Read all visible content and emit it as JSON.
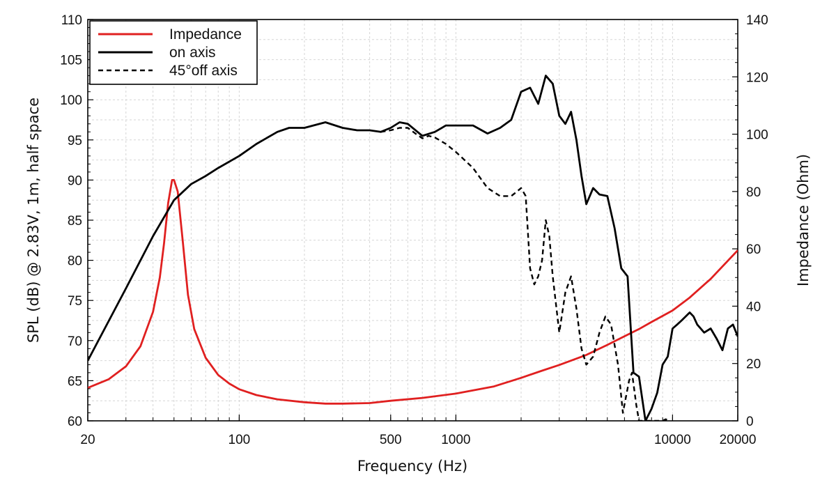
{
  "chart_data": {
    "type": "line",
    "xlabel": "Frequency (Hz)",
    "ylabel": "SPL (dB) @ 2.83V, 1m, half space",
    "y2label": "Impedance (Ohm)",
    "x_scale": "log",
    "xlim": [
      20,
      20000
    ],
    "ylim": [
      60,
      110
    ],
    "y2lim": [
      0,
      140
    ],
    "grid": true,
    "legend_position": "top-left",
    "x_tick_labels": [
      "20",
      "100",
      "500",
      "1000",
      "10000",
      "20000"
    ],
    "x_tick_values": [
      20,
      100,
      500,
      1000,
      10000,
      20000
    ],
    "y_tick_values": [
      60,
      65,
      70,
      75,
      80,
      85,
      90,
      95,
      100,
      105,
      110
    ],
    "y2_tick_values": [
      0,
      20,
      40,
      60,
      80,
      100,
      120,
      140
    ],
    "legend": [
      {
        "label": "Impedance",
        "style": "solid",
        "color": "#e02020"
      },
      {
        "label": "on axis",
        "style": "solid",
        "color": "#000000"
      },
      {
        "label": "45°off axis",
        "style": "dashed",
        "color": "#000000"
      }
    ],
    "series": [
      {
        "name": "Impedance",
        "axis": "y2",
        "color": "#e02020",
        "style": "solid",
        "x": [
          20,
          25,
          30,
          35,
          40,
          43,
          45,
          47,
          49,
          50,
          52,
          55,
          58,
          62,
          70,
          80,
          90,
          100,
          120,
          150,
          200,
          250,
          300,
          400,
          500,
          700,
          1000,
          1500,
          2000,
          2500,
          3000,
          4000,
          5000,
          6000,
          7000,
          8000,
          10000,
          12000,
          15000,
          20000
        ],
        "y": [
          11.5,
          14.5,
          19,
          26,
          38,
          50,
          62,
          76,
          84,
          84,
          80,
          62,
          44,
          32,
          22,
          16,
          13,
          11,
          9,
          7.5,
          6.5,
          6,
          6,
          6.2,
          7,
          8,
          9.5,
          12,
          15,
          17.5,
          19.5,
          23,
          26.5,
          29.5,
          32,
          34.5,
          38.5,
          43,
          49.5,
          59.5
        ]
      },
      {
        "name": "on axis",
        "axis": "y",
        "color": "#000000",
        "style": "solid",
        "x": [
          20,
          30,
          40,
          50,
          60,
          70,
          80,
          100,
          120,
          150,
          170,
          200,
          250,
          300,
          350,
          400,
          450,
          500,
          550,
          600,
          700,
          800,
          900,
          1000,
          1200,
          1400,
          1600,
          1800,
          2000,
          2200,
          2400,
          2600,
          2800,
          3000,
          3200,
          3400,
          3600,
          3800,
          4000,
          4300,
          4600,
          5000,
          5400,
          5800,
          6200,
          6600,
          7000,
          7500,
          8000,
          8500,
          9000,
          9500,
          10000,
          10500,
          11000,
          12000,
          12500,
          13000,
          14000,
          15000,
          16000,
          17000,
          18000,
          19000,
          20000
        ],
        "y": [
          67.5,
          76.5,
          83,
          87.5,
          89.5,
          90.5,
          91.5,
          93,
          94.5,
          96,
          96.5,
          96.5,
          97.2,
          96.5,
          96.2,
          96.2,
          96,
          96.5,
          97.2,
          97,
          95.5,
          96,
          96.8,
          96.8,
          96.8,
          95.8,
          96.5,
          97.5,
          101,
          101.5,
          99.5,
          103,
          102,
          98,
          97,
          98.5,
          95,
          90.5,
          87,
          89,
          88.2,
          88,
          84,
          79,
          78,
          66,
          65.5,
          60,
          61.5,
          63.5,
          67,
          68,
          71.5,
          72,
          72.5,
          73.5,
          73,
          72,
          71,
          71.5,
          70.2,
          68.8,
          71.5,
          72,
          70.5
        ]
      },
      {
        "name": "45°off axis",
        "axis": "y",
        "color": "#000000",
        "style": "dashed",
        "x": [
          450,
          500,
          550,
          600,
          650,
          700,
          750,
          800,
          900,
          1000,
          1200,
          1400,
          1600,
          1800,
          1900,
          2000,
          2100,
          2200,
          2300,
          2400,
          2500,
          2600,
          2700,
          2800,
          3000,
          3200,
          3400,
          3600,
          3800,
          4000,
          4300,
          4600,
          4900,
          5200,
          5600,
          5900,
          6300,
          6500,
          6800,
          7000,
          7300,
          8000,
          9000,
          9300,
          9600
        ],
        "y": [
          96,
          96.2,
          96.5,
          96.5,
          95.8,
          95.2,
          95.5,
          95.3,
          94.5,
          93.5,
          91.5,
          89,
          88,
          88,
          88.5,
          89,
          88,
          79,
          77,
          78,
          80,
          85,
          83,
          78,
          71,
          76,
          78,
          74,
          69,
          67,
          68,
          71,
          73,
          72,
          67,
          61,
          65,
          66,
          62,
          60,
          60,
          60,
          60,
          60.2,
          60
        ]
      }
    ]
  }
}
